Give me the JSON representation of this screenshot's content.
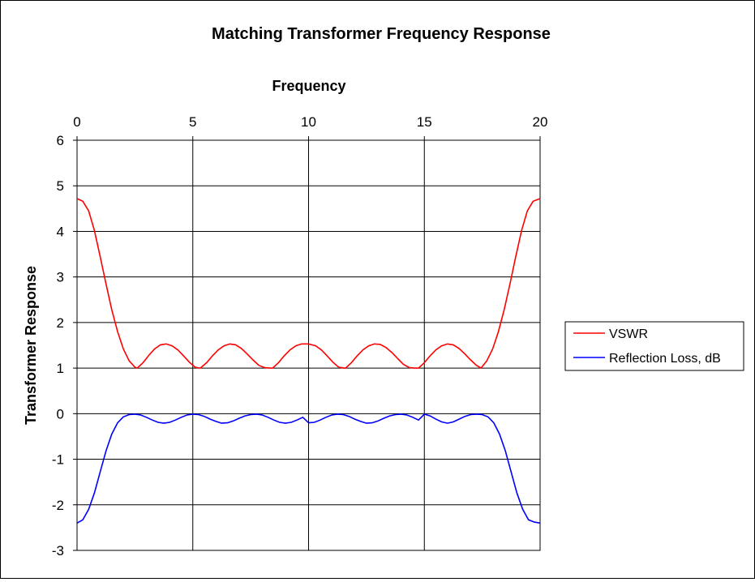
{
  "chart_data": {
    "type": "line",
    "title": "Matching Transformer Frequency Response",
    "xlabel": "Frequency",
    "ylabel": "Transformer  Response",
    "xlim": [
      0,
      20
    ],
    "ylim": [
      -3,
      6
    ],
    "x_ticks": [
      "0",
      "5",
      "10",
      "15",
      "20"
    ],
    "y_ticks": [
      "6",
      "5",
      "4",
      "3",
      "2",
      "1",
      "0",
      "-1",
      "-2",
      "-3"
    ],
    "x_axis_position": "top",
    "grid": true,
    "legend_position": "right",
    "series": [
      {
        "name": "VSWR",
        "color": "#ff0000",
        "x": [
          0,
          0.25,
          0.5,
          0.75,
          1,
          1.25,
          1.5,
          1.75,
          2,
          2.25,
          2.5,
          2.6,
          2.85,
          3.1,
          3.35,
          3.6,
          3.85,
          4.1,
          4.35,
          4.6,
          4.85,
          5.1,
          5.3,
          5.35,
          5.6,
          5.85,
          6.1,
          6.35,
          6.6,
          6.85,
          7.1,
          7.35,
          7.6,
          7.85,
          8.1,
          8.35,
          8.45,
          8.7,
          8.95,
          9.2,
          9.45,
          9.7,
          10,
          10.3,
          10.55,
          10.8,
          11.05,
          11.3,
          11.55,
          11.6,
          11.85,
          12.1,
          12.35,
          12.6,
          12.85,
          13.1,
          13.35,
          13.6,
          13.85,
          14.1,
          14.35,
          14.6,
          14.75,
          15,
          15.25,
          15.5,
          15.75,
          16,
          16.25,
          16.5,
          16.75,
          17,
          17.25,
          17.45,
          17.7,
          17.95,
          18.2,
          18.45,
          18.7,
          18.95,
          19.2,
          19.45,
          19.7,
          20
        ],
        "values": [
          4.72,
          4.66,
          4.45,
          4.02,
          3.45,
          2.85,
          2.28,
          1.8,
          1.42,
          1.16,
          1.02,
          1.0,
          1.12,
          1.28,
          1.42,
          1.51,
          1.53,
          1.49,
          1.4,
          1.27,
          1.13,
          1.02,
          1.0,
          1.01,
          1.12,
          1.27,
          1.4,
          1.49,
          1.53,
          1.51,
          1.43,
          1.31,
          1.18,
          1.06,
          1.01,
          1.0,
          1.0,
          1.12,
          1.27,
          1.4,
          1.49,
          1.53,
          1.53,
          1.49,
          1.4,
          1.27,
          1.13,
          1.02,
          1.0,
          1.0,
          1.12,
          1.27,
          1.4,
          1.49,
          1.53,
          1.52,
          1.45,
          1.34,
          1.21,
          1.08,
          1.01,
          1.0,
          1.0,
          1.12,
          1.27,
          1.4,
          1.49,
          1.53,
          1.51,
          1.43,
          1.31,
          1.18,
          1.06,
          1.0,
          1.16,
          1.42,
          1.8,
          2.28,
          2.85,
          3.45,
          4.02,
          4.45,
          4.66,
          4.72
        ]
      },
      {
        "name": "Reflection Loss, dB",
        "color": "#0000ff",
        "x": [
          0,
          0.25,
          0.5,
          0.75,
          1,
          1.25,
          1.5,
          1.75,
          2,
          2.25,
          2.5,
          2.75,
          3,
          3.25,
          3.5,
          3.75,
          4,
          4.25,
          4.5,
          4.75,
          5,
          5.25,
          5.5,
          5.75,
          6,
          6.25,
          6.5,
          6.75,
          7,
          7.25,
          7.5,
          7.75,
          8,
          8.25,
          8.5,
          8.75,
          9,
          9.25,
          9.5,
          9.75,
          10,
          10.25,
          10.5,
          10.75,
          11,
          11.25,
          11.5,
          11.75,
          12,
          12.25,
          12.5,
          12.75,
          13,
          13.25,
          13.5,
          13.75,
          14,
          14.25,
          14.5,
          14.75,
          15,
          15.25,
          15.5,
          15.75,
          16,
          16.25,
          16.5,
          16.75,
          17,
          17.25,
          17.5,
          17.75,
          18,
          18.25,
          18.5,
          18.75,
          19,
          19.25,
          19.5,
          19.75,
          20
        ],
        "values": [
          -2.4,
          -2.33,
          -2.1,
          -1.74,
          -1.28,
          -0.82,
          -0.45,
          -0.2,
          -0.07,
          -0.02,
          -0.01,
          -0.03,
          -0.08,
          -0.14,
          -0.19,
          -0.21,
          -0.19,
          -0.14,
          -0.08,
          -0.03,
          -0.01,
          -0.02,
          -0.06,
          -0.12,
          -0.17,
          -0.21,
          -0.2,
          -0.16,
          -0.1,
          -0.05,
          -0.02,
          -0.01,
          -0.03,
          -0.08,
          -0.14,
          -0.19,
          -0.21,
          -0.19,
          -0.14,
          -0.08,
          -0.2,
          -0.19,
          -0.14,
          -0.08,
          -0.03,
          -0.01,
          -0.02,
          -0.06,
          -0.12,
          -0.17,
          -0.21,
          -0.2,
          -0.16,
          -0.1,
          -0.05,
          -0.02,
          -0.01,
          -0.03,
          -0.08,
          -0.14,
          -0.01,
          -0.05,
          -0.12,
          -0.18,
          -0.21,
          -0.18,
          -0.12,
          -0.06,
          -0.02,
          -0.01,
          -0.02,
          -0.07,
          -0.2,
          -0.45,
          -0.82,
          -1.28,
          -1.74,
          -2.1,
          -2.33,
          -2.38,
          -2.4
        ]
      }
    ]
  }
}
